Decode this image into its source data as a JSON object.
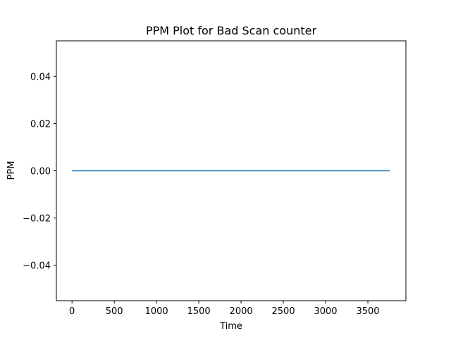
{
  "chart_data": {
    "type": "line",
    "title": "PPM Plot for Bad Scan counter",
    "xlabel": "Time",
    "ylabel": "PPM",
    "xlim": [
      -185,
      3950
    ],
    "ylim": [
      -0.055,
      0.055
    ],
    "xticks": [
      0,
      500,
      1000,
      1500,
      2000,
      2500,
      3000,
      3500
    ],
    "xtick_labels": [
      "0",
      "500",
      "1000",
      "1500",
      "2000",
      "2500",
      "3000",
      "3500"
    ],
    "yticks": [
      -0.04,
      -0.02,
      0.0,
      0.02,
      0.04
    ],
    "ytick_labels": [
      "−0.04",
      "−0.02",
      "0.00",
      "0.02",
      "0.04"
    ],
    "grid": false,
    "series": [
      {
        "color": "#1f77b4",
        "x": [
          0,
          3760
        ],
        "y": [
          0,
          0
        ]
      }
    ]
  }
}
